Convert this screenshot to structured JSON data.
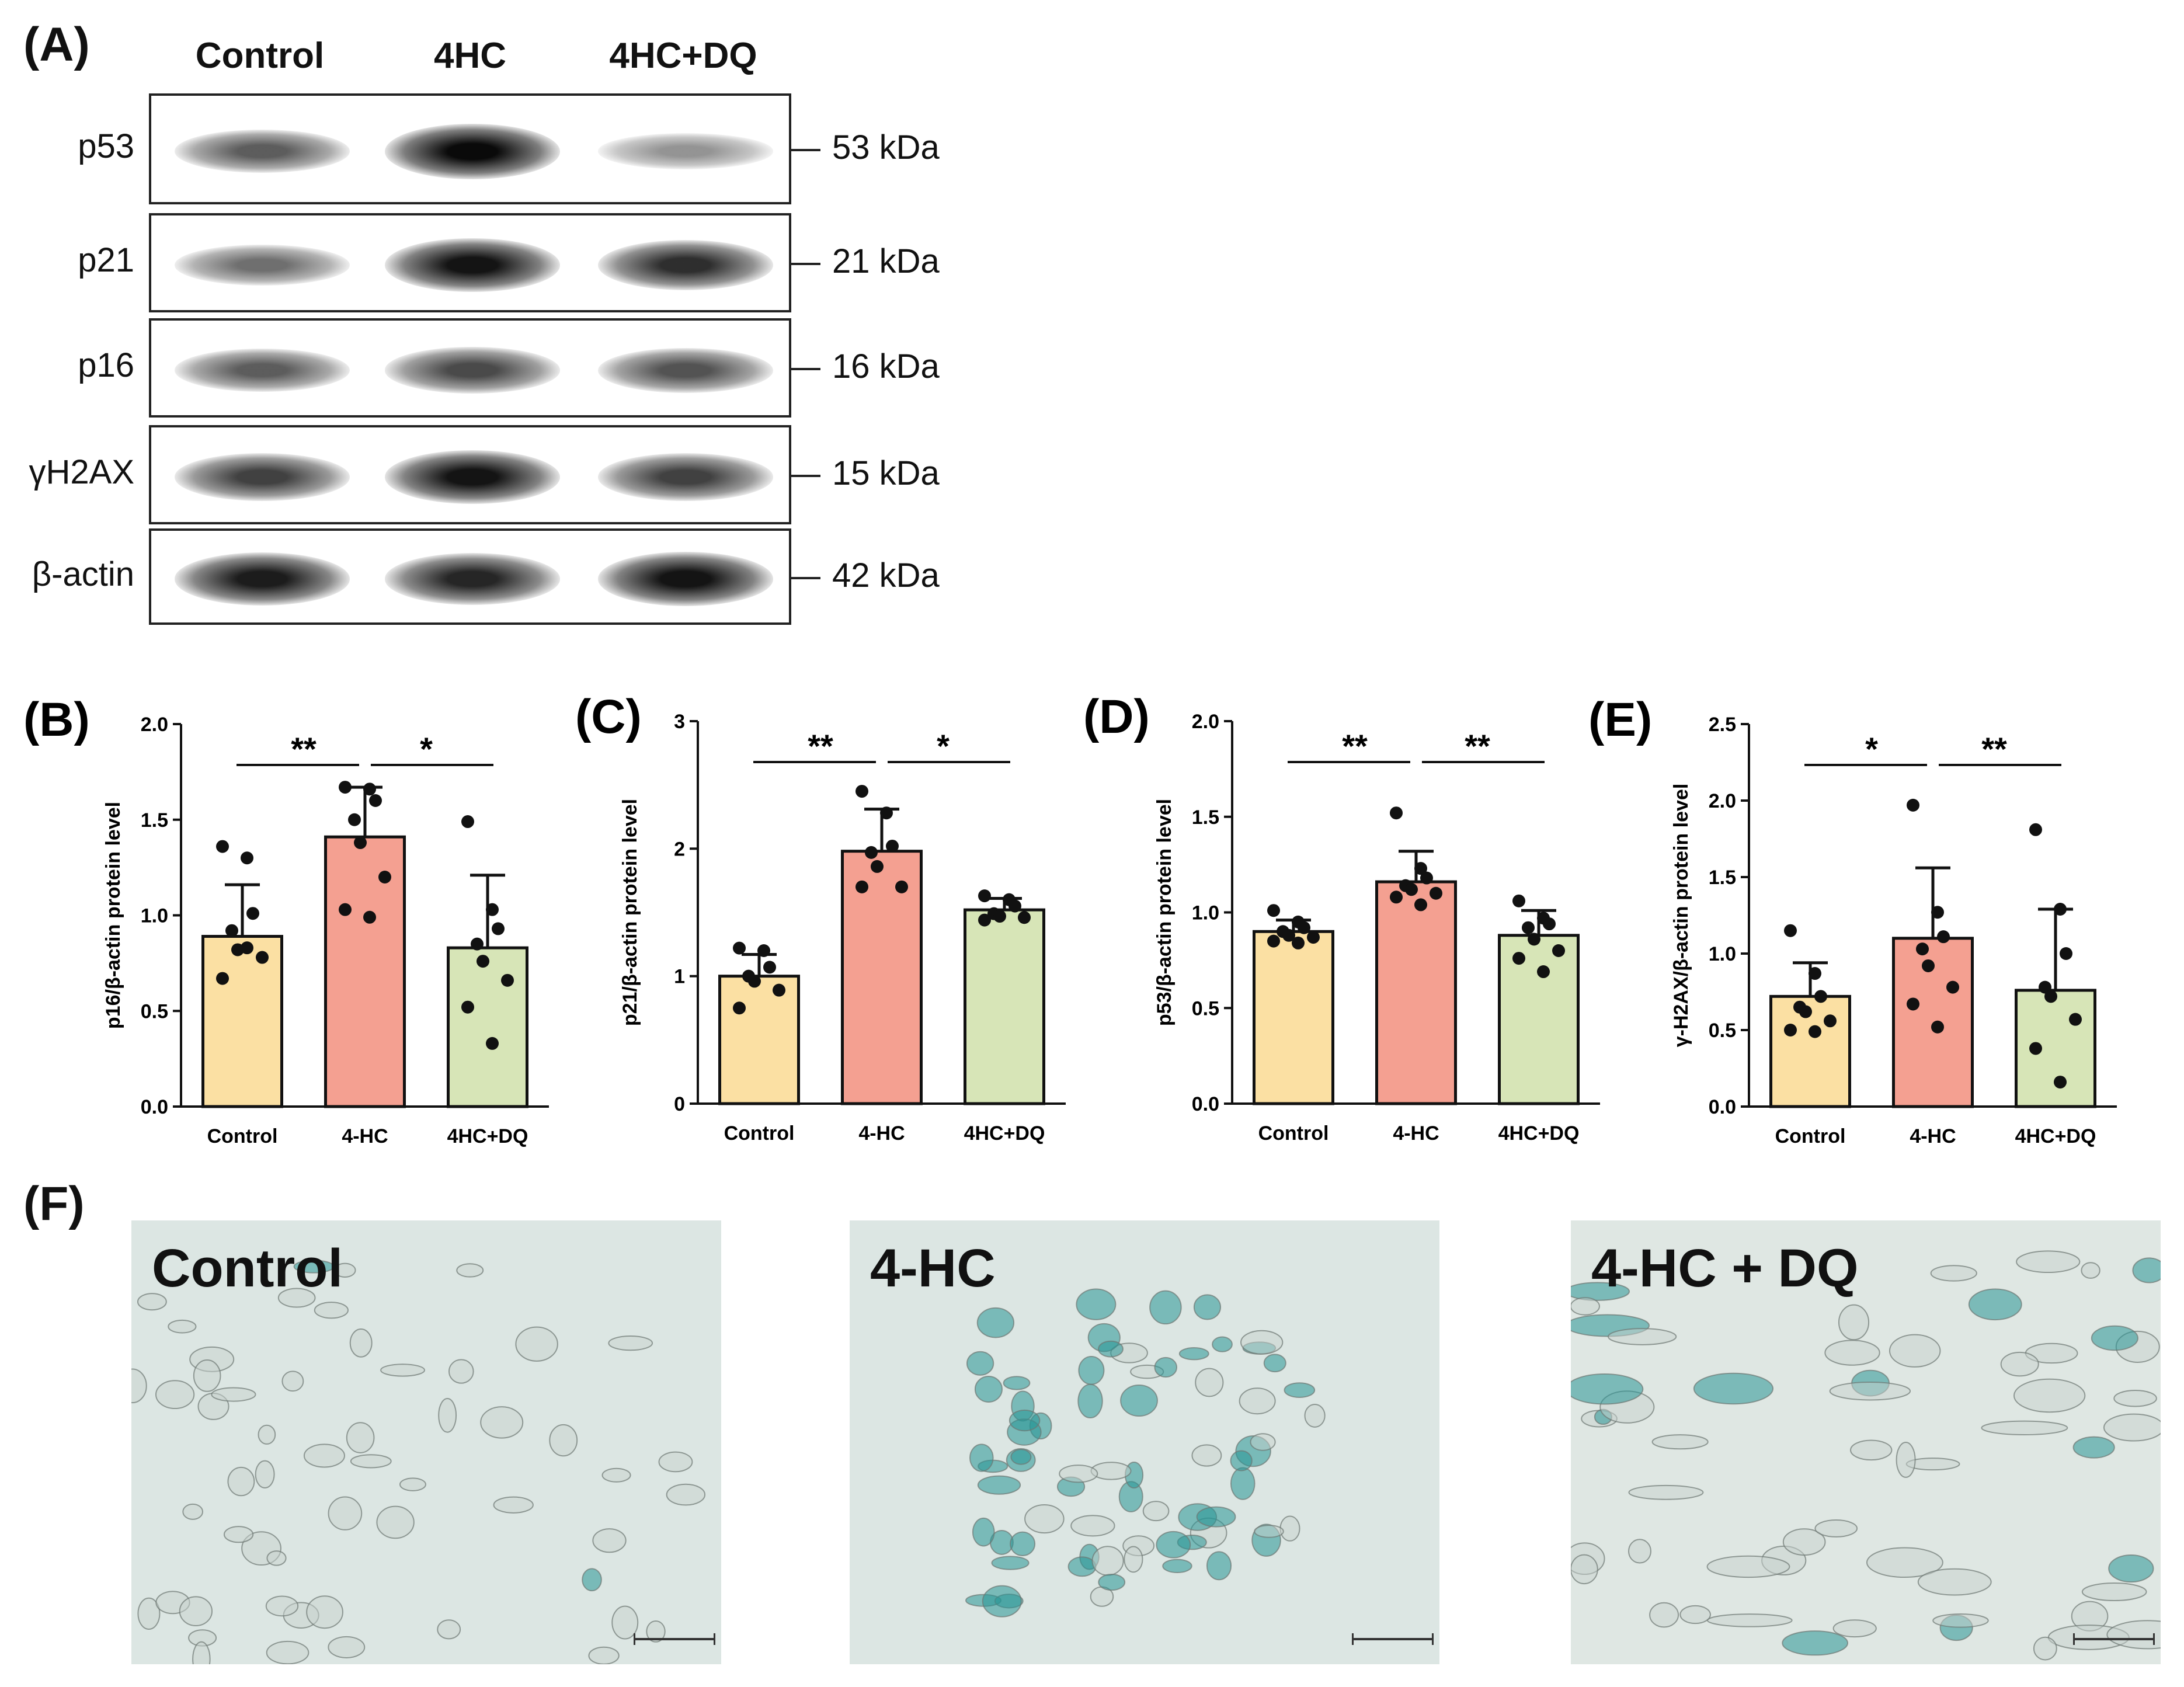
{
  "panel_a": {
    "letter": "(A)",
    "lanes": [
      "Control",
      "4HC",
      "4HC+DQ"
    ],
    "rows": [
      {
        "protein": "p53",
        "kda": "53 kDa",
        "intensity": [
          0.55,
          1.0,
          0.25
        ]
      },
      {
        "protein": "p21",
        "kda": "21 kDa",
        "intensity": [
          0.45,
          0.95,
          0.8
        ]
      },
      {
        "protein": "p16",
        "kda": "16 kDa",
        "intensity": [
          0.55,
          0.65,
          0.6
        ]
      },
      {
        "protein": "γH2AX",
        "kda": "15 kDa",
        "intensity": [
          0.7,
          0.95,
          0.7
        ]
      },
      {
        "protein": "β-actin",
        "kda": "42 kDa",
        "intensity": [
          0.9,
          0.85,
          0.95
        ]
      }
    ]
  },
  "colors": {
    "control": "#fbe0a3",
    "hc": "#f4a091",
    "hcdq": "#d7e5b7"
  },
  "chart_data": [
    {
      "type": "bar",
      "letter": "(B)",
      "categories": [
        "Control",
        "4-HC",
        "4HC+DQ"
      ],
      "values": [
        0.89,
        1.41,
        0.83
      ],
      "errors": [
        0.27,
        0.26,
        0.38
      ],
      "points": [
        [
          1.36,
          1.3,
          1.01,
          0.92,
          0.82,
          0.78,
          0.67,
          0.83
        ],
        [
          1.67,
          1.66,
          1.6,
          1.5,
          1.38,
          1.2,
          1.03,
          0.99
        ],
        [
          1.49,
          1.03,
          0.93,
          0.85,
          0.76,
          0.66,
          0.52,
          0.33
        ]
      ],
      "ylabel": "p16/β-actin protein level",
      "ylim": [
        0,
        2.0
      ],
      "ticks": [
        "0.0",
        "0.5",
        "1.0",
        "1.5",
        "2.0"
      ],
      "significance": [
        "**",
        "*"
      ]
    },
    {
      "type": "bar",
      "letter": "(C)",
      "categories": [
        "Control",
        "4-HC",
        "4HC+DQ"
      ],
      "values": [
        1.0,
        1.98,
        1.52
      ],
      "errors": [
        0.17,
        0.33,
        0.09
      ],
      "points": [
        [
          1.22,
          1.2,
          1.07,
          1.0,
          0.96,
          0.89,
          0.75
        ],
        [
          2.45,
          2.28,
          2.02,
          1.97,
          1.86,
          1.7,
          1.7
        ],
        [
          1.63,
          1.6,
          1.55,
          1.49,
          1.47,
          1.46,
          1.44
        ]
      ],
      "ylabel": "p21/β-actin protein level",
      "ylim": [
        0,
        3
      ],
      "ticks": [
        "0",
        "1",
        "2",
        "3"
      ],
      "significance": [
        "**",
        "*"
      ]
    },
    {
      "type": "bar",
      "letter": "(D)",
      "categories": [
        "Control",
        "4-HC",
        "4HC+DQ"
      ],
      "values": [
        0.9,
        1.16,
        0.88
      ],
      "errors": [
        0.06,
        0.16,
        0.13
      ],
      "points": [
        [
          1.01,
          0.95,
          0.92,
          0.9,
          0.88,
          0.87,
          0.85,
          0.84
        ],
        [
          1.52,
          1.23,
          1.18,
          1.14,
          1.12,
          1.1,
          1.08,
          1.04
        ],
        [
          1.06,
          0.97,
          0.94,
          0.92,
          0.86,
          0.8,
          0.76,
          0.69
        ]
      ],
      "ylabel": "p53/β-actin protein level",
      "ylim": [
        0,
        2.0
      ],
      "ticks": [
        "0.0",
        "0.5",
        "1.0",
        "1.5",
        "2.0"
      ],
      "significance": [
        "**",
        "**"
      ]
    },
    {
      "type": "bar",
      "letter": "(E)",
      "categories": [
        "Control",
        "4-HC",
        "4HC+DQ"
      ],
      "values": [
        0.72,
        1.1,
        0.76
      ],
      "errors": [
        0.22,
        0.46,
        0.53
      ],
      "points": [
        [
          1.15,
          0.87,
          0.72,
          0.65,
          0.62,
          0.56,
          0.5,
          0.49
        ],
        [
          1.97,
          1.27,
          1.11,
          1.03,
          0.92,
          0.78,
          0.67,
          0.52
        ],
        [
          1.81,
          1.29,
          1.0,
          0.78,
          0.72,
          0.57,
          0.38,
          0.16
        ]
      ],
      "ylabel": "γ-H2AX/β-actin protein level",
      "ylim": [
        0,
        2.5
      ],
      "ticks": [
        "0.0",
        "0.5",
        "1.0",
        "1.5",
        "2.0",
        "2.5"
      ],
      "significance": [
        "*",
        "**"
      ]
    }
  ],
  "panel_f": {
    "letter": "(F)",
    "images": [
      {
        "label": "Control",
        "stain": 0.02
      },
      {
        "label": "4-HC",
        "stain": 0.75
      },
      {
        "label": "4-HC + DQ",
        "stain": 0.25
      }
    ]
  }
}
